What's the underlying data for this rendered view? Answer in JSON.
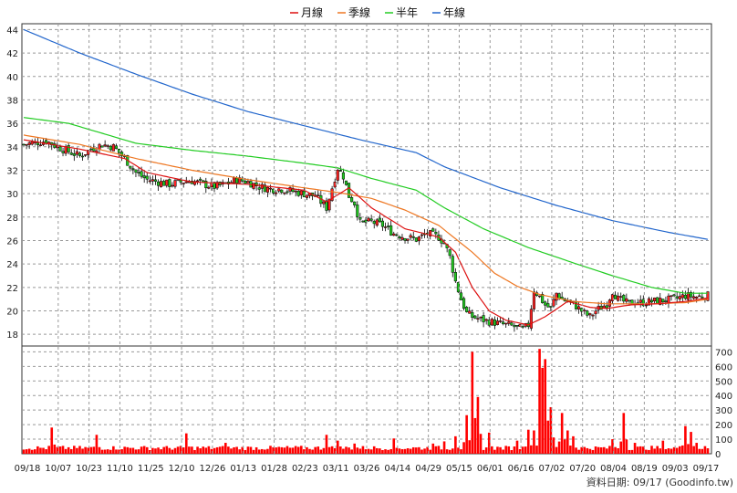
{
  "chart_data": {
    "type": "candlestick+line+bar",
    "legend": [
      {
        "name": "月線",
        "color": "#dd1111"
      },
      {
        "name": "季線",
        "color": "#ee7722"
      },
      {
        "name": "半年",
        "color": "#22cc22"
      },
      {
        "name": "年線",
        "color": "#2266cc"
      }
    ],
    "x_ticks": [
      "09/18",
      "10/07",
      "10/23",
      "11/10",
      "11/25",
      "12/10",
      "12/26",
      "01/13",
      "01/28",
      "02/23",
      "03/11",
      "03/26",
      "04/14",
      "04/29",
      "05/15",
      "06/01",
      "06/16",
      "07/02",
      "07/20",
      "08/04",
      "08/19",
      "09/03",
      "09/17"
    ],
    "price_axis": {
      "ticks": [
        18,
        20,
        22,
        24,
        26,
        28,
        30,
        32,
        34,
        36,
        38,
        40,
        42,
        44
      ],
      "range": [
        17,
        44.5
      ]
    },
    "volume_axis": {
      "ticks": [
        0,
        100,
        200,
        300,
        400,
        500,
        600,
        700
      ],
      "range": [
        0,
        740
      ]
    },
    "num_days": 245,
    "price_keypoints": [
      [
        0,
        34.2
      ],
      [
        8,
        34.5
      ],
      [
        12,
        34.0
      ],
      [
        16,
        33.6
      ],
      [
        20,
        33.2
      ],
      [
        24,
        33.8
      ],
      [
        28,
        34.2
      ],
      [
        32,
        34.0
      ],
      [
        36,
        33.0
      ],
      [
        40,
        31.8
      ],
      [
        44,
        31.2
      ],
      [
        48,
        31.0
      ],
      [
        52,
        30.8
      ],
      [
        56,
        31.0
      ],
      [
        60,
        31.1
      ],
      [
        64,
        30.8
      ],
      [
        68,
        30.6
      ],
      [
        72,
        30.8
      ],
      [
        76,
        31.2
      ],
      [
        80,
        31.0
      ],
      [
        84,
        30.6
      ],
      [
        88,
        30.4
      ],
      [
        92,
        30.4
      ],
      [
        96,
        30.2
      ],
      [
        100,
        30.0
      ],
      [
        104,
        29.8
      ],
      [
        108,
        28.8
      ],
      [
        110,
        30.5
      ],
      [
        112,
        32.2
      ],
      [
        114,
        31.5
      ],
      [
        116,
        29.8
      ],
      [
        118,
        29.2
      ],
      [
        120,
        27.5
      ],
      [
        124,
        27.6
      ],
      [
        128,
        27.3
      ],
      [
        132,
        26.6
      ],
      [
        136,
        26.3
      ],
      [
        140,
        26.1
      ],
      [
        144,
        26.6
      ],
      [
        148,
        26.3
      ],
      [
        150,
        25.8
      ],
      [
        152,
        24.6
      ],
      [
        154,
        22.5
      ],
      [
        156,
        21.0
      ],
      [
        158,
        19.8
      ],
      [
        160,
        19.5
      ],
      [
        164,
        19.2
      ],
      [
        168,
        19.0
      ],
      [
        172,
        18.8
      ],
      [
        176,
        18.6
      ],
      [
        178,
        18.4
      ],
      [
        180,
        18.8
      ],
      [
        182,
        21.8
      ],
      [
        184,
        21.2
      ],
      [
        186,
        20.5
      ],
      [
        188,
        20.2
      ],
      [
        190,
        21.5
      ],
      [
        192,
        21.0
      ],
      [
        194,
        20.8
      ],
      [
        196,
        20.6
      ],
      [
        198,
        20.2
      ],
      [
        200,
        19.8
      ],
      [
        202,
        19.5
      ],
      [
        204,
        20.0
      ],
      [
        206,
        20.3
      ],
      [
        208,
        20.6
      ],
      [
        210,
        21.7
      ],
      [
        212,
        21.0
      ],
      [
        214,
        20.8
      ],
      [
        216,
        20.6
      ],
      [
        218,
        20.8
      ],
      [
        220,
        20.7
      ],
      [
        224,
        20.8
      ],
      [
        228,
        20.9
      ],
      [
        232,
        21.0
      ],
      [
        236,
        21.3
      ],
      [
        240,
        21.2
      ],
      [
        244,
        21.3
      ]
    ],
    "ma_yearly": [
      [
        0,
        44.0
      ],
      [
        20,
        42.0
      ],
      [
        40,
        40.2
      ],
      [
        60,
        38.5
      ],
      [
        80,
        37.0
      ],
      [
        100,
        35.8
      ],
      [
        120,
        34.6
      ],
      [
        140,
        33.5
      ],
      [
        150,
        32.3
      ],
      [
        170,
        30.5
      ],
      [
        190,
        29.0
      ],
      [
        210,
        27.7
      ],
      [
        230,
        26.7
      ],
      [
        244,
        26.1
      ]
    ],
    "ma_half": [
      [
        0,
        36.5
      ],
      [
        16,
        36.0
      ],
      [
        40,
        34.3
      ],
      [
        60,
        33.7
      ],
      [
        80,
        33.2
      ],
      [
        100,
        32.6
      ],
      [
        112,
        32.2
      ],
      [
        124,
        31.3
      ],
      [
        140,
        30.3
      ],
      [
        150,
        28.8
      ],
      [
        164,
        27.0
      ],
      [
        180,
        25.4
      ],
      [
        196,
        24.1
      ],
      [
        210,
        23.0
      ],
      [
        224,
        22.0
      ],
      [
        236,
        21.5
      ],
      [
        244,
        21.5
      ]
    ],
    "ma_quarter": [
      [
        0,
        35.0
      ],
      [
        20,
        34.2
      ],
      [
        40,
        33.0
      ],
      [
        60,
        32.0
      ],
      [
        80,
        31.2
      ],
      [
        100,
        30.5
      ],
      [
        112,
        30.1
      ],
      [
        124,
        29.6
      ],
      [
        136,
        28.6
      ],
      [
        148,
        27.3
      ],
      [
        160,
        25.0
      ],
      [
        168,
        23.2
      ],
      [
        176,
        22.1
      ],
      [
        184,
        21.4
      ],
      [
        196,
        20.8
      ],
      [
        208,
        20.6
      ],
      [
        224,
        20.6
      ],
      [
        236,
        20.7
      ],
      [
        244,
        21.0
      ]
    ],
    "ma_monthly": [
      [
        0,
        34.6
      ],
      [
        20,
        33.8
      ],
      [
        36,
        33.0
      ],
      [
        44,
        31.8
      ],
      [
        60,
        31.0
      ],
      [
        80,
        30.8
      ],
      [
        100,
        30.3
      ],
      [
        108,
        29.3
      ],
      [
        116,
        30.5
      ],
      [
        124,
        28.8
      ],
      [
        136,
        27.0
      ],
      [
        148,
        26.3
      ],
      [
        154,
        25.0
      ],
      [
        160,
        22.0
      ],
      [
        166,
        20.0
      ],
      [
        172,
        19.2
      ],
      [
        180,
        18.8
      ],
      [
        186,
        19.5
      ],
      [
        194,
        20.8
      ],
      [
        202,
        20.3
      ],
      [
        208,
        20.2
      ],
      [
        216,
        20.5
      ],
      [
        226,
        20.6
      ],
      [
        236,
        20.8
      ],
      [
        244,
        21.1
      ]
    ],
    "volume_spikes": [
      [
        10,
        180
      ],
      [
        26,
        130
      ],
      [
        58,
        140
      ],
      [
        72,
        75
      ],
      [
        108,
        130
      ],
      [
        112,
        90
      ],
      [
        118,
        70
      ],
      [
        132,
        105
      ],
      [
        146,
        70
      ],
      [
        150,
        85
      ],
      [
        154,
        120
      ],
      [
        158,
        265
      ],
      [
        160,
        700
      ],
      [
        162,
        390
      ],
      [
        166,
        145
      ],
      [
        176,
        90
      ],
      [
        180,
        165
      ],
      [
        182,
        160
      ],
      [
        184,
        720
      ],
      [
        185,
        590
      ],
      [
        186,
        650
      ],
      [
        188,
        320
      ],
      [
        192,
        280
      ],
      [
        194,
        160
      ],
      [
        196,
        120
      ],
      [
        210,
        100
      ],
      [
        214,
        280
      ],
      [
        218,
        75
      ],
      [
        228,
        90
      ],
      [
        236,
        190
      ],
      [
        238,
        150
      ],
      [
        240,
        75
      ]
    ],
    "source_note": "資料日期: 09/17  (Goodinfo.tw)"
  }
}
